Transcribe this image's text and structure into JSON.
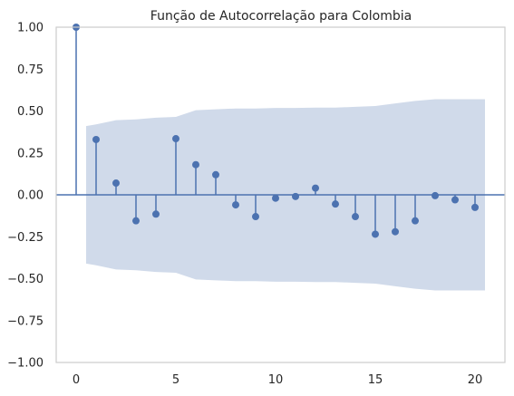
{
  "chart_data": {
    "type": "stem",
    "title": "Função de Autocorrelação para Colombia",
    "xlabel": "",
    "ylabel": "",
    "xlim": [
      -1,
      21.5
    ],
    "ylim": [
      -1.0,
      1.0
    ],
    "x_ticks": [
      0,
      5,
      10,
      15,
      20
    ],
    "y_ticks": [
      -1.0,
      -0.75,
      -0.5,
      -0.25,
      0.0,
      0.25,
      0.5,
      0.75,
      1.0
    ],
    "x_tick_labels": [
      "0",
      "5",
      "10",
      "15",
      "20"
    ],
    "y_tick_labels": [
      "−1.00",
      "−0.75",
      "−0.50",
      "−0.25",
      "0.00",
      "0.25",
      "0.50",
      "0.75",
      "1.00"
    ],
    "grid": false,
    "lags": [
      0,
      1,
      2,
      3,
      4,
      5,
      6,
      7,
      8,
      9,
      10,
      11,
      12,
      13,
      14,
      15,
      16,
      17,
      18,
      19,
      20
    ],
    "values": [
      1.0,
      0.33,
      0.07,
      -0.155,
      -0.115,
      0.335,
      0.18,
      0.12,
      -0.06,
      -0.13,
      -0.02,
      -0.01,
      0.04,
      -0.055,
      -0.13,
      -0.235,
      -0.22,
      -0.155,
      -0.005,
      -0.03,
      -0.075
    ],
    "confidence_band": {
      "x": [
        0.5,
        1,
        2,
        3,
        4,
        5,
        6,
        7,
        8,
        9,
        10,
        11,
        12,
        13,
        14,
        15,
        16,
        17,
        18,
        19,
        20,
        20.5
      ],
      "upper": [
        0.41,
        0.42,
        0.445,
        0.45,
        0.46,
        0.465,
        0.505,
        0.51,
        0.515,
        0.515,
        0.518,
        0.518,
        0.52,
        0.52,
        0.525,
        0.53,
        0.545,
        0.56,
        0.57,
        0.57,
        0.57,
        0.57
      ]
    },
    "colors": {
      "stem": "#4c72b0",
      "band": "#d0daea",
      "axis": "#cccccc",
      "text": "#262626"
    }
  }
}
